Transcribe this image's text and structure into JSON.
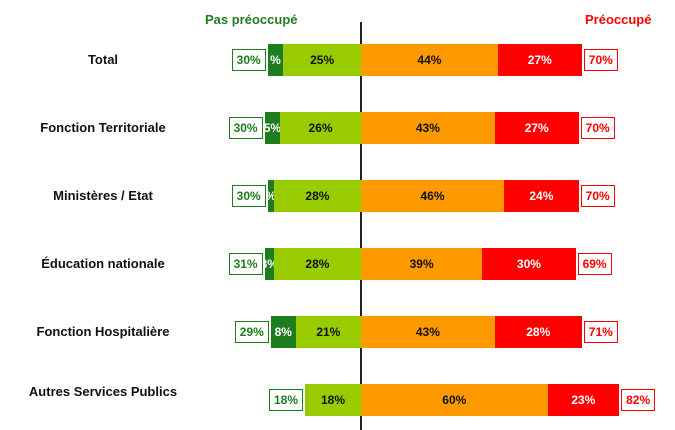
{
  "chart_data": {
    "type": "bar",
    "orientation": "horizontal diverging stacked",
    "headers": {
      "left": "Pas préoccupé",
      "right": "Préoccupé"
    },
    "categories": [
      "Total",
      "Fonction Territoriale",
      "Ministères / Etat",
      "Éducation nationale",
      "Fonction Hospitalière",
      "Autres Services Publics"
    ],
    "series": [
      {
        "side": "left",
        "color": "#1e7d1e",
        "values": [
          5,
          5,
          2,
          3,
          8,
          0
        ],
        "labels": [
          "%",
          "5%",
          "%",
          "3%",
          "8%",
          ""
        ]
      },
      {
        "side": "left",
        "color": "#99cc00",
        "values": [
          25,
          26,
          28,
          28,
          21,
          18
        ],
        "labels": [
          "25%",
          "26%",
          "28%",
          "28%",
          "21%",
          "18%"
        ]
      },
      {
        "side": "right",
        "color": "#ff9900",
        "values": [
          44,
          43,
          46,
          39,
          43,
          60
        ],
        "labels": [
          "44%",
          "43%",
          "46%",
          "39%",
          "43%",
          "60%"
        ]
      },
      {
        "side": "right",
        "color": "#ff0000",
        "values": [
          27,
          27,
          24,
          30,
          28,
          23
        ],
        "labels": [
          "27%",
          "27%",
          "24%",
          "30%",
          "28%",
          "23%"
        ]
      }
    ],
    "totals_left": [
      "30%",
      "30%",
      "30%",
      "31%",
      "29%",
      "18%"
    ],
    "totals_right": [
      "70%",
      "70%",
      "70%",
      "69%",
      "71%",
      "82%"
    ],
    "colors": {
      "left_header": "#1e7d1e",
      "right_header": "#ff0000"
    }
  }
}
